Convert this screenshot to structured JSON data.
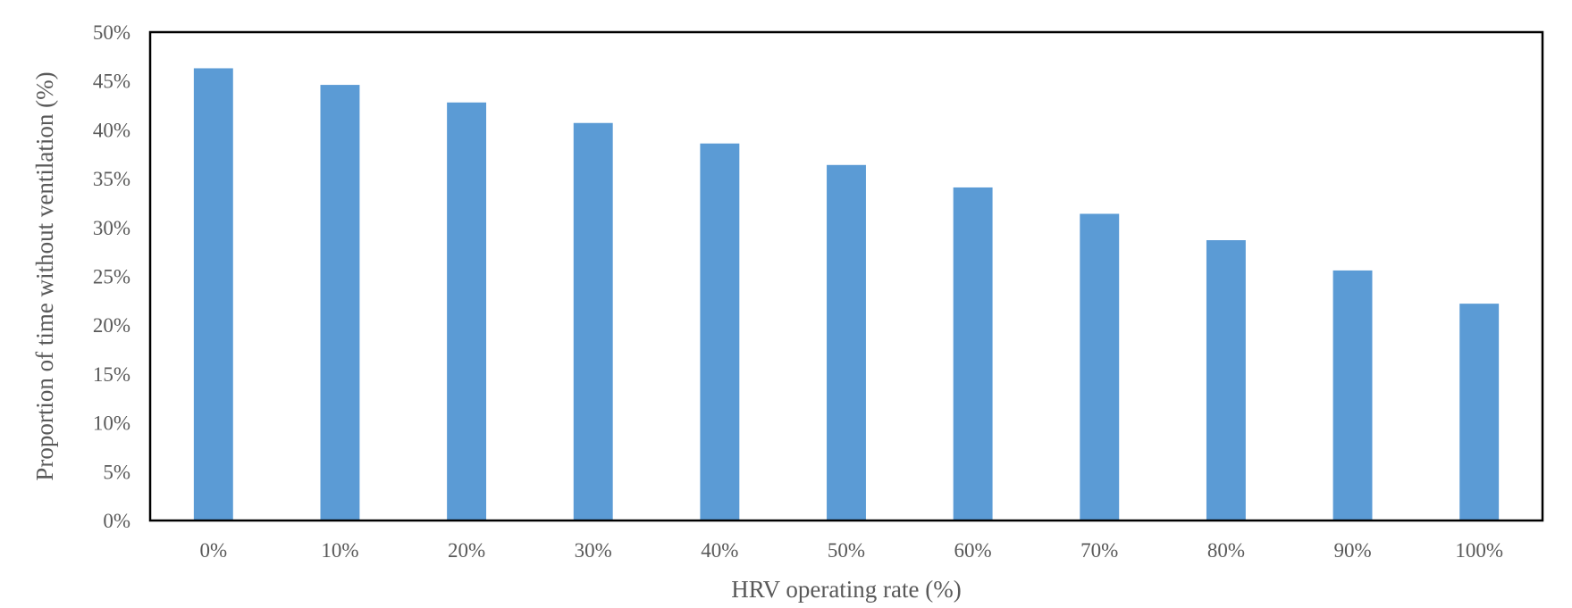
{
  "chart_data": {
    "type": "bar",
    "categories": [
      "0%",
      "10%",
      "20%",
      "30%",
      "40%",
      "50%",
      "60%",
      "70%",
      "80%",
      "90%",
      "100%"
    ],
    "series": [
      {
        "values": [
          46.3,
          44.6,
          42.8,
          40.7,
          38.6,
          36.4,
          34.1,
          31.4,
          28.7,
          25.6,
          22.2
        ]
      }
    ],
    "xlabel": "HRV operating rate (%)",
    "ylabel": "Proportion of time without ventilation (%)",
    "ylim": [
      0,
      50
    ],
    "y_ticks": [
      "0%",
      "5%",
      "10%",
      "15%",
      "20%",
      "25%",
      "30%",
      "35%",
      "40%",
      "45%",
      "50%"
    ],
    "grid": false,
    "legend": "none",
    "colors": {
      "bar": "#5B9BD5",
      "frame": "#000000",
      "text": "#595959"
    }
  }
}
